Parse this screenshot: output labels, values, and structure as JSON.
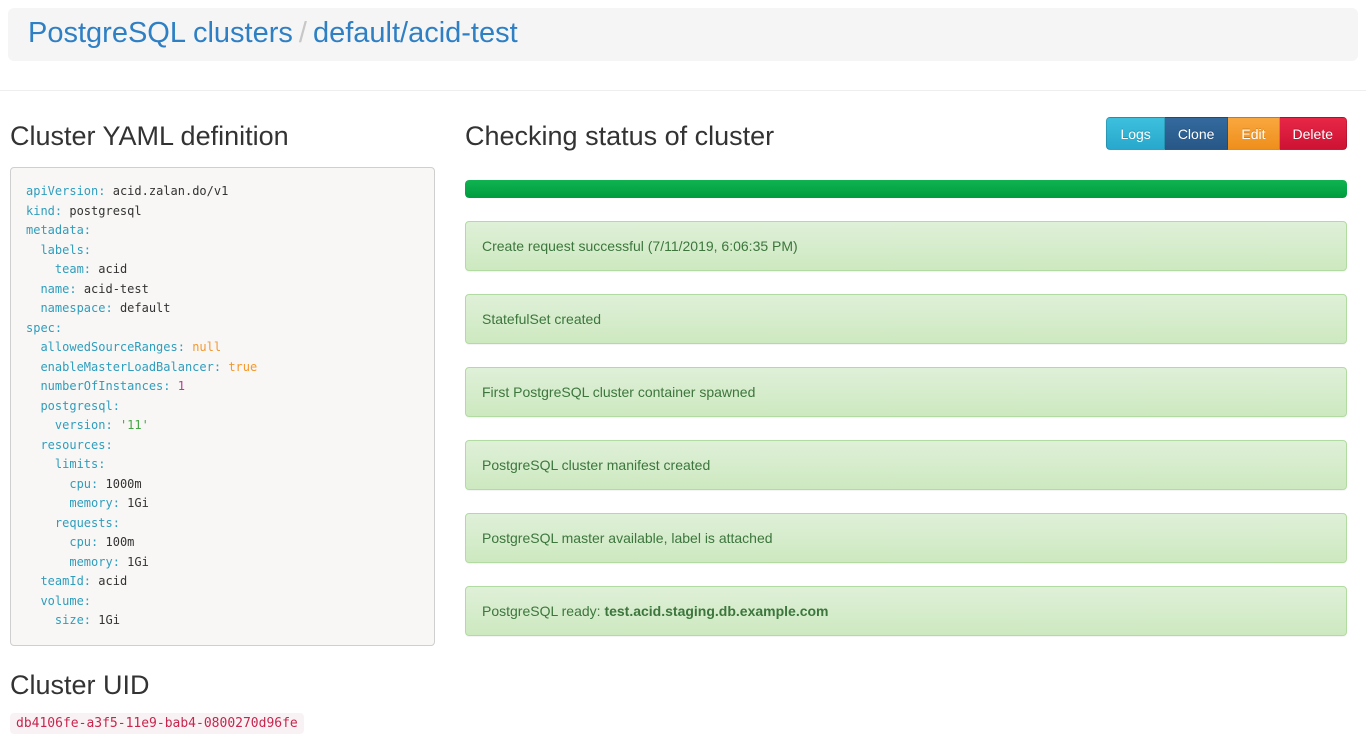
{
  "header": {
    "root": "PostgreSQL clusters",
    "separator": "/",
    "current": "default/acid-test"
  },
  "yaml_section": {
    "title": "Cluster YAML definition",
    "lines": [
      {
        "indent": 0,
        "key": "apiVersion",
        "value": "acid.zalan.do/v1",
        "type": "plain"
      },
      {
        "indent": 0,
        "key": "kind",
        "value": "postgresql",
        "type": "plain"
      },
      {
        "indent": 0,
        "key": "metadata"
      },
      {
        "indent": 1,
        "key": "labels"
      },
      {
        "indent": 2,
        "key": "team",
        "value": "acid",
        "type": "plain"
      },
      {
        "indent": 1,
        "key": "name",
        "value": "acid-test",
        "type": "plain"
      },
      {
        "indent": 1,
        "key": "namespace",
        "value": "default",
        "type": "plain"
      },
      {
        "indent": 0,
        "key": "spec"
      },
      {
        "indent": 1,
        "key": "allowedSourceRanges",
        "value": "null",
        "type": "literal"
      },
      {
        "indent": 1,
        "key": "enableMasterLoadBalancer",
        "value": "true",
        "type": "literal"
      },
      {
        "indent": 1,
        "key": "numberOfInstances",
        "value": "1",
        "type": "number"
      },
      {
        "indent": 1,
        "key": "postgresql"
      },
      {
        "indent": 2,
        "key": "version",
        "value": "'11'",
        "type": "string"
      },
      {
        "indent": 1,
        "key": "resources"
      },
      {
        "indent": 2,
        "key": "limits"
      },
      {
        "indent": 3,
        "key": "cpu",
        "value": "1000m",
        "type": "plain"
      },
      {
        "indent": 3,
        "key": "memory",
        "value": "1Gi",
        "type": "plain"
      },
      {
        "indent": 2,
        "key": "requests"
      },
      {
        "indent": 3,
        "key": "cpu",
        "value": "100m",
        "type": "plain"
      },
      {
        "indent": 3,
        "key": "memory",
        "value": "1Gi",
        "type": "plain"
      },
      {
        "indent": 1,
        "key": "teamId",
        "value": "acid",
        "type": "plain"
      },
      {
        "indent": 1,
        "key": "volume"
      },
      {
        "indent": 2,
        "key": "size",
        "value": "1Gi",
        "type": "plain"
      }
    ]
  },
  "uid_section": {
    "title": "Cluster UID",
    "uid": "db4106fe-a3f5-11e9-bab4-0800270d96fe"
  },
  "status_section": {
    "title": "Checking status of cluster",
    "buttons": [
      {
        "name": "logs-button",
        "label": "Logs",
        "color_top": "#3dc0de",
        "color_bottom": "#28a8cc"
      },
      {
        "name": "clone-button",
        "label": "Clone",
        "color_top": "#336a9e",
        "color_bottom": "#275787"
      },
      {
        "name": "edit-button",
        "label": "Edit",
        "color_top": "#f9a73f",
        "color_bottom": "#ee8f1c"
      },
      {
        "name": "delete-button",
        "label": "Delete",
        "color_top": "#e82746",
        "color_bottom": "#cd1234"
      }
    ],
    "progress_percent": 100,
    "messages": [
      {
        "text": "Create request successful (7/11/2019, 6:06:35 PM)"
      },
      {
        "text": "StatefulSet created"
      },
      {
        "text": "First PostgreSQL cluster container spawned"
      },
      {
        "text": "PostgreSQL cluster manifest created"
      },
      {
        "text": "PostgreSQL master available, label is attached"
      },
      {
        "text": "PostgreSQL ready: ",
        "bold": "test.acid.staging.db.example.com"
      }
    ]
  },
  "colors": {
    "link": "#2e7fc4",
    "header_bg": "#f5f5f5",
    "yaml_key": "#2f9dbd",
    "yaml_literal": "#f5982c",
    "yaml_number": "#b93a8e",
    "yaml_string": "#46a546",
    "uid_bg": "#f9f2f4",
    "uid_text": "#c7254e",
    "progress_top": "#10b351",
    "progress_bottom": "#009c3e",
    "alert_bg_top": "#dff0d8",
    "alert_bg_bottom": "#cde9c0",
    "alert_border": "#b2dba1",
    "alert_text": "#3c763d"
  }
}
